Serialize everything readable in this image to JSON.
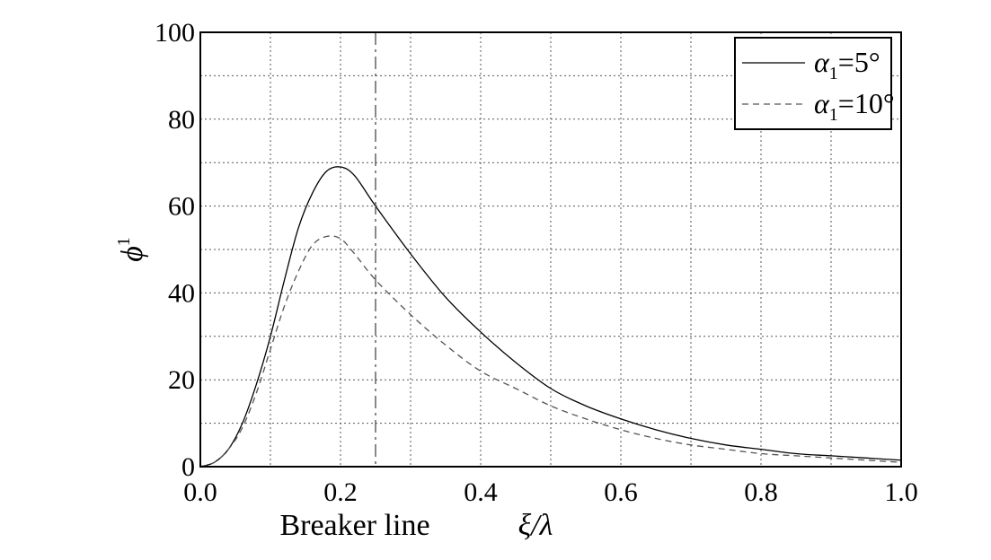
{
  "chart_data": {
    "type": "line",
    "xlabel": "ξ/λ",
    "ylabel": "ϕ",
    "ylabel_superscript": "1",
    "xlim": [
      0.0,
      1.0
    ],
    "ylim": [
      0,
      100
    ],
    "x_ticks": [
      "0.0",
      "0.2",
      "0.4",
      "0.6",
      "0.8",
      "1.0"
    ],
    "y_ticks": [
      "0",
      "20",
      "40",
      "60",
      "80",
      "100"
    ],
    "x_tick_values": [
      0.0,
      0.2,
      0.4,
      0.6,
      0.8,
      1.0
    ],
    "y_tick_values": [
      0,
      20,
      40,
      60,
      80,
      100
    ],
    "grid_x": [
      0.1,
      0.2,
      0.3,
      0.4,
      0.5,
      0.6,
      0.7,
      0.8,
      0.9
    ],
    "grid_y": [
      10,
      20,
      30,
      40,
      50,
      60,
      70,
      80,
      90
    ],
    "grid": true,
    "legend_position": "top-right",
    "series": [
      {
        "name": "α1=5°",
        "label_main": "α",
        "label_sub": "1",
        "label_rest": "=5°",
        "style": "solid",
        "color": "#000000",
        "x": [
          0.0,
          0.02,
          0.04,
          0.06,
          0.08,
          0.1,
          0.12,
          0.14,
          0.16,
          0.18,
          0.2,
          0.22,
          0.25,
          0.3,
          0.35,
          0.4,
          0.45,
          0.5,
          0.55,
          0.6,
          0.65,
          0.7,
          0.75,
          0.8,
          0.85,
          0.9,
          0.95,
          1.0
        ],
        "y": [
          0,
          1,
          4,
          10,
          19,
          30,
          43,
          55,
          63,
          68,
          69,
          67,
          60,
          49,
          39,
          31,
          24,
          18,
          14,
          11,
          8.5,
          6.5,
          5,
          4,
          3,
          2.5,
          2,
          1.5
        ]
      },
      {
        "name": "α1=10°",
        "label_main": "α",
        "label_sub": "1",
        "label_rest": "=10°",
        "style": "dashed",
        "color": "#555555",
        "x": [
          0.0,
          0.02,
          0.04,
          0.06,
          0.08,
          0.1,
          0.12,
          0.14,
          0.16,
          0.18,
          0.2,
          0.22,
          0.25,
          0.3,
          0.35,
          0.4,
          0.45,
          0.5,
          0.55,
          0.6,
          0.65,
          0.7,
          0.75,
          0.8,
          0.85,
          0.9,
          0.95,
          1.0
        ],
        "y": [
          0,
          1,
          4,
          9,
          17,
          27,
          37,
          45,
          51,
          53,
          52.5,
          49,
          43,
          35,
          28,
          22,
          18,
          14,
          11,
          8.5,
          6.5,
          5,
          4,
          3,
          2.5,
          2,
          1.5,
          1
        ]
      }
    ],
    "annotations": [
      {
        "text": "Breaker line",
        "x": 0.25,
        "style": "dashdot",
        "color": "#555555"
      }
    ]
  }
}
